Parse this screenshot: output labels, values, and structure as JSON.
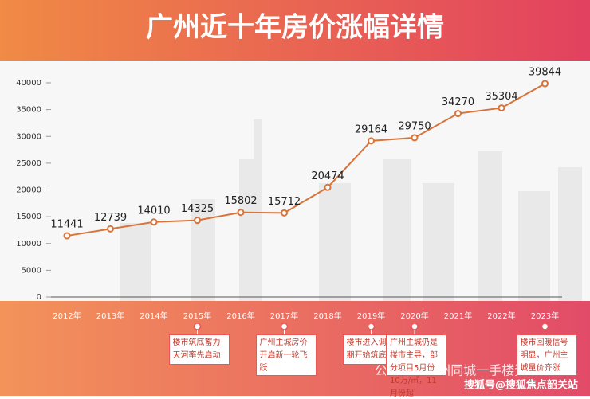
{
  "chart_data": {
    "type": "line",
    "title": "广州近十年房价涨幅详情",
    "categories": [
      "2012年",
      "2013年",
      "2014年",
      "2015年",
      "2016年",
      "2017年",
      "2018年",
      "2019年",
      "2020年",
      "2021年",
      "2022年",
      "2023年"
    ],
    "values": [
      11441,
      12739,
      14010,
      14325,
      15802,
      15712,
      20474,
      29164,
      29750,
      34270,
      35304,
      39844
    ],
    "color": "#d8733a",
    "ylim": [
      0,
      40000
    ],
    "yticks": [
      0,
      5000,
      10000,
      15000,
      20000,
      25000,
      30000,
      35000,
      40000
    ],
    "annotations": [
      "楼市筑底蓄力天河率先启动",
      "广州主城房价开启新一轮飞跃",
      "楼市进入调控期开始筑底",
      "广州主城仍是楼市主导，部分项目5月份10万/㎡，11月份超",
      "楼市回暖信号明显，广州主城量价齐涨"
    ],
    "watermarks": [
      "公众号 · 广州同城一手楼资讯",
      "搜狐号@搜狐焦点韶关站"
    ]
  }
}
